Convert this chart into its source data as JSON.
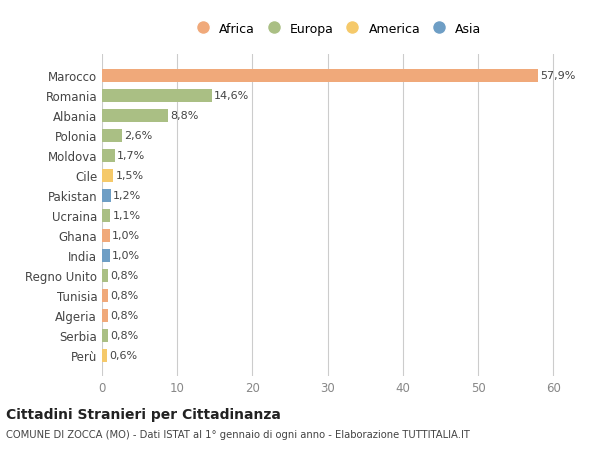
{
  "categories": [
    "Marocco",
    "Romania",
    "Albania",
    "Polonia",
    "Moldova",
    "Cile",
    "Pakistan",
    "Ucraina",
    "Ghana",
    "India",
    "Regno Unito",
    "Tunisia",
    "Algeria",
    "Serbia",
    "Perù"
  ],
  "values": [
    57.9,
    14.6,
    8.8,
    2.6,
    1.7,
    1.5,
    1.2,
    1.1,
    1.0,
    1.0,
    0.8,
    0.8,
    0.8,
    0.8,
    0.6
  ],
  "labels": [
    "57,9%",
    "14,6%",
    "8,8%",
    "2,6%",
    "1,7%",
    "1,5%",
    "1,2%",
    "1,1%",
    "1,0%",
    "1,0%",
    "0,8%",
    "0,8%",
    "0,8%",
    "0,8%",
    "0,6%"
  ],
  "continents": [
    "Africa",
    "Europa",
    "Europa",
    "Europa",
    "Europa",
    "America",
    "Asia",
    "Europa",
    "Africa",
    "Asia",
    "Europa",
    "Africa",
    "Africa",
    "Europa",
    "America"
  ],
  "colors": {
    "Africa": "#F0A97A",
    "Europa": "#AABF84",
    "America": "#F5C96A",
    "Asia": "#6E9EC5"
  },
  "legend_order": [
    "Africa",
    "Europa",
    "America",
    "Asia"
  ],
  "bg_color": "#ffffff",
  "grid_color": "#cccccc",
  "title": "Cittadini Stranieri per Cittadinanza",
  "subtitle": "COMUNE DI ZOCCA (MO) - Dati ISTAT al 1° gennaio di ogni anno - Elaborazione TUTTITALIA.IT",
  "xlim": [
    0,
    63
  ],
  "xticks": [
    0,
    10,
    20,
    30,
    40,
    50,
    60
  ]
}
